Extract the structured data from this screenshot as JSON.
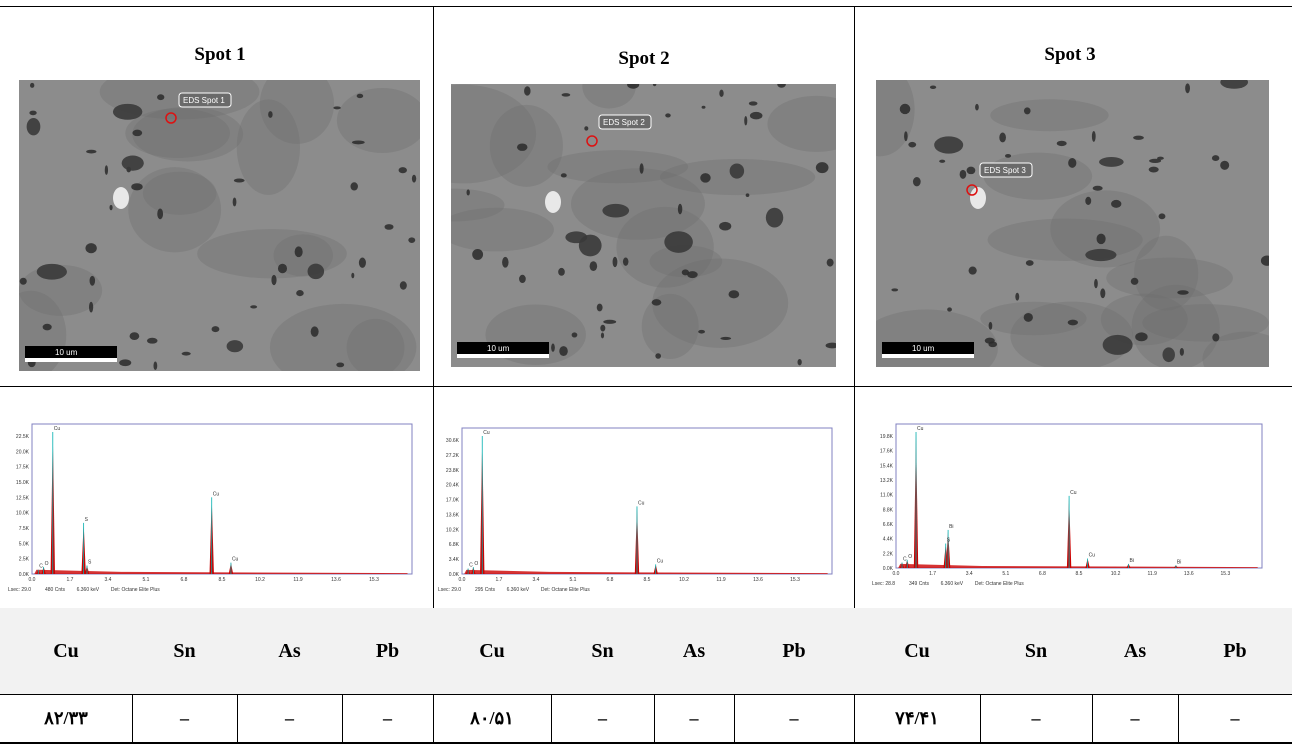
{
  "spots": [
    {
      "title": "Spot 1",
      "sem_label": "EDS Spot 1",
      "scale": "10 um",
      "eds": {
        "yticks": [
          "22.5K",
          "20.0K",
          "17.5K",
          "15.0K",
          "12.5K",
          "10.0K",
          "7.5K",
          "5.0K",
          "2.5K",
          "0.0K"
        ],
        "footer": [
          "Lsec: 29.0",
          "480 Cnts",
          "6.360 keV",
          "Det: Octane Elite Plus"
        ],
        "peaks": [
          {
            "label": "Cu",
            "x": 0.93,
            "h": 1.0
          },
          {
            "label": "S",
            "x": 2.31,
            "h": 0.36
          },
          {
            "label": "S",
            "x": 2.46,
            "h": 0.06
          },
          {
            "label": "O",
            "x": 0.52,
            "h": 0.05
          },
          {
            "label": "C",
            "x": 0.28,
            "h": 0.03
          },
          {
            "label": "Cu",
            "x": 8.04,
            "h": 0.54
          },
          {
            "label": "Cu",
            "x": 8.9,
            "h": 0.08
          }
        ]
      },
      "values": {
        "Cu": "۸۲/۳۳",
        "Sn": "–",
        "As": "–",
        "Pb": "–"
      }
    },
    {
      "title": "Spot 2",
      "sem_label": "EDS Spot 2",
      "scale": "10 um",
      "eds": {
        "yticks": [
          "30.6K",
          "27.2K",
          "23.8K",
          "20.4K",
          "17.0K",
          "13.6K",
          "10.2K",
          "6.8K",
          "3.4K",
          "0.0K"
        ],
        "footer": [
          "Lsec: 29.0",
          "295 Cnts",
          "6.360 keV",
          "Det: Octane Elite Plus"
        ],
        "peaks": [
          {
            "label": "Cu",
            "x": 0.93,
            "h": 1.0
          },
          {
            "label": "O",
            "x": 0.52,
            "h": 0.05
          },
          {
            "label": "C",
            "x": 0.28,
            "h": 0.04
          },
          {
            "label": "Cu",
            "x": 8.04,
            "h": 0.49
          },
          {
            "label": "Cu",
            "x": 8.9,
            "h": 0.07
          }
        ]
      },
      "values": {
        "Cu": "۸۰/۵۱",
        "Sn": "–",
        "As": "–",
        "Pb": "–"
      }
    },
    {
      "title": "Spot 3",
      "sem_label": "EDS Spot 3",
      "scale": "10 um",
      "eds": {
        "yticks": [
          "19.8K",
          "17.6K",
          "15.4K",
          "13.2K",
          "11.0K",
          "8.8K",
          "6.6K",
          "4.4K",
          "2.2K",
          "0.0K"
        ],
        "footer": [
          "Lsec: 28.8",
          "349 Cnts",
          "6.360 keV",
          "Det: Octane Elite Plus"
        ],
        "peaks": [
          {
            "label": "Cu",
            "x": 0.93,
            "h": 1.0
          },
          {
            "label": "Bi",
            "x": 2.42,
            "h": 0.28
          },
          {
            "label": "S",
            "x": 2.31,
            "h": 0.18
          },
          {
            "label": "O",
            "x": 0.52,
            "h": 0.06
          },
          {
            "label": "C",
            "x": 0.28,
            "h": 0.04
          },
          {
            "label": "Cu",
            "x": 8.04,
            "h": 0.53
          },
          {
            "label": "Cu",
            "x": 8.9,
            "h": 0.07
          },
          {
            "label": "Bi",
            "x": 10.8,
            "h": 0.03
          },
          {
            "label": "Bi",
            "x": 13.0,
            "h": 0.02
          }
        ]
      },
      "values": {
        "Cu": "۷۴/۴۱",
        "Sn": "–",
        "As": "–",
        "Pb": "–"
      }
    }
  ],
  "xticks": [
    "0.0",
    "1.7",
    "3.4",
    "5.1",
    "6.8",
    "8.5",
    "10.2",
    "11.9",
    "13.6",
    "15.3"
  ],
  "elements": [
    "Cu",
    "Sn",
    "As",
    "Pb"
  ],
  "colors": {
    "spectrum_fill": "#cc0000",
    "peak_line": "#00b0b0",
    "header_bg": "#f2f2f2",
    "frame": "#8080c0"
  }
}
